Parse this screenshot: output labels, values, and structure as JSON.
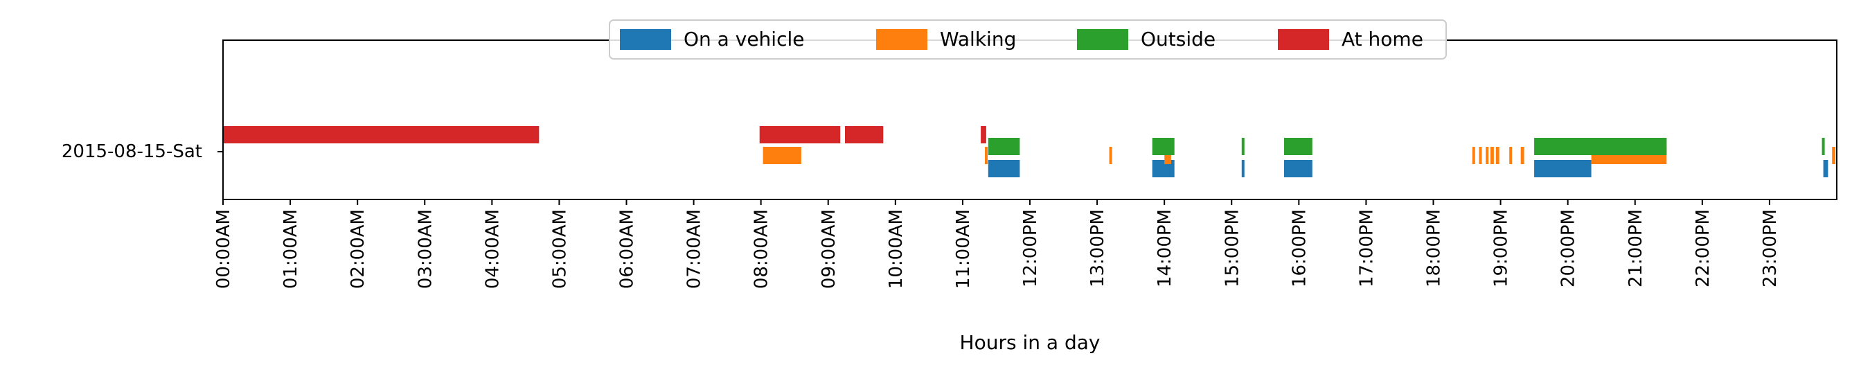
{
  "chart_data": {
    "type": "timeline",
    "xlabel": "Hours in a day",
    "ylabel": "",
    "xlim_hours": [
      0,
      24
    ],
    "row_label": "2015-08-15-Sat",
    "tick_labels": [
      "00:00AM",
      "01:00AM",
      "02:00AM",
      "03:00AM",
      "04:00AM",
      "05:00AM",
      "06:00AM",
      "07:00AM",
      "08:00AM",
      "09:00AM",
      "10:00AM",
      "11:00AM",
      "12:00PM",
      "13:00PM",
      "14:00PM",
      "15:00PM",
      "16:00PM",
      "17:00PM",
      "18:00PM",
      "19:00PM",
      "20:00PM",
      "21:00PM",
      "22:00PM",
      "23:00PM"
    ],
    "legend_position": "top-center",
    "grid": false,
    "series": [
      {
        "name": "On a vehicle",
        "color": "#1f77b4",
        "lane": 0,
        "intervals": [
          [
            11.38,
            11.85
          ],
          [
            13.82,
            14.15
          ],
          [
            15.15,
            15.19
          ],
          [
            15.78,
            16.2
          ],
          [
            19.5,
            20.35
          ],
          [
            23.8,
            23.87
          ]
        ]
      },
      {
        "name": "Walking",
        "color": "#ff7f0e",
        "lane": 1,
        "intervals": [
          [
            8.03,
            8.6
          ],
          [
            11.33,
            11.37
          ],
          [
            13.18,
            13.22
          ],
          [
            14.0,
            14.1
          ],
          [
            18.58,
            18.62
          ],
          [
            18.68,
            18.72
          ],
          [
            18.78,
            18.82
          ],
          [
            18.85,
            18.9
          ],
          [
            18.93,
            18.98
          ],
          [
            19.13,
            19.17
          ],
          [
            19.3,
            19.35
          ],
          [
            20.35,
            21.47
          ],
          [
            23.93,
            23.98
          ]
        ]
      },
      {
        "name": "Outside",
        "color": "#2ca02c",
        "lane": 2,
        "intervals": [
          [
            11.38,
            11.85
          ],
          [
            13.82,
            14.15
          ],
          [
            15.15,
            15.19
          ],
          [
            15.78,
            16.2
          ],
          [
            19.5,
            21.47
          ],
          [
            23.78,
            23.82
          ]
        ]
      },
      {
        "name": "At home",
        "color": "#d62728",
        "lane": 3,
        "intervals": [
          [
            0.0,
            4.7
          ],
          [
            7.98,
            9.18
          ],
          [
            9.25,
            9.82
          ],
          [
            11.27,
            11.35
          ]
        ]
      }
    ]
  }
}
